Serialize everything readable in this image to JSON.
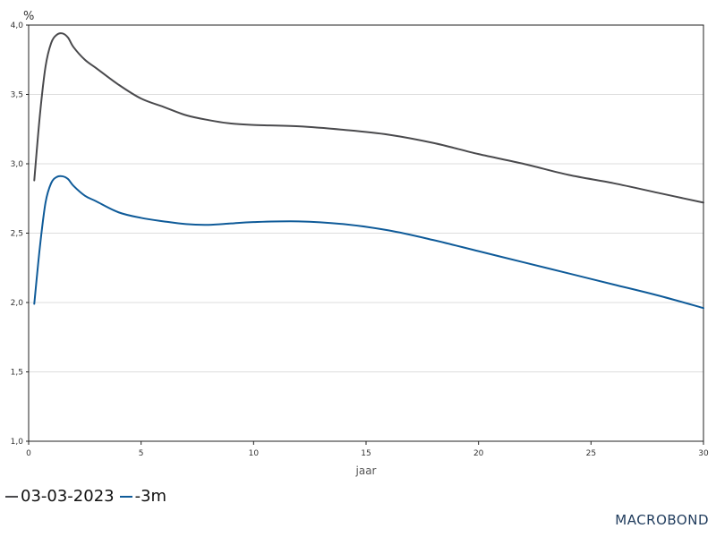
{
  "chart_data": {
    "type": "line",
    "title": "",
    "unit_label": "%",
    "xlabel": "jaar",
    "ylabel": "",
    "xlim": [
      0,
      30
    ],
    "ylim": [
      1.0,
      4.0
    ],
    "x_ticks": [
      0,
      5,
      10,
      15,
      20,
      25,
      30
    ],
    "x_tick_labels": [
      "0",
      "5",
      "10",
      "15",
      "20",
      "25",
      "30"
    ],
    "y_ticks": [
      1.0,
      1.5,
      2.0,
      2.5,
      3.0,
      3.5,
      4.0
    ],
    "y_tick_labels": [
      "1,0",
      "1,5",
      "2,0",
      "2,5",
      "3,0",
      "3,5",
      "4,0"
    ],
    "grid": "horizontal",
    "legend_position": "bottom-left",
    "series": [
      {
        "name": "03-03-2023",
        "color": "#4a4a4d",
        "points": [
          [
            0.25,
            2.88
          ],
          [
            0.5,
            3.35
          ],
          [
            0.75,
            3.7
          ],
          [
            1.0,
            3.87
          ],
          [
            1.25,
            3.93
          ],
          [
            1.5,
            3.94
          ],
          [
            1.75,
            3.91
          ],
          [
            2.0,
            3.84
          ],
          [
            2.5,
            3.75
          ],
          [
            3.0,
            3.69
          ],
          [
            4.0,
            3.57
          ],
          [
            5.0,
            3.47
          ],
          [
            6.0,
            3.41
          ],
          [
            7.0,
            3.35
          ],
          [
            8.0,
            3.315
          ],
          [
            9.0,
            3.29
          ],
          [
            10.0,
            3.28
          ],
          [
            12.0,
            3.27
          ],
          [
            14.0,
            3.245
          ],
          [
            16.0,
            3.21
          ],
          [
            18.0,
            3.15
          ],
          [
            20.0,
            3.07
          ],
          [
            22.0,
            3.0
          ],
          [
            24.0,
            2.92
          ],
          [
            26.0,
            2.86
          ],
          [
            28.0,
            2.79
          ],
          [
            30.0,
            2.72
          ]
        ]
      },
      {
        "name": "-3m",
        "color": "#0f5b99",
        "points": [
          [
            0.25,
            1.99
          ],
          [
            0.5,
            2.4
          ],
          [
            0.75,
            2.72
          ],
          [
            1.0,
            2.86
          ],
          [
            1.25,
            2.905
          ],
          [
            1.5,
            2.91
          ],
          [
            1.75,
            2.89
          ],
          [
            2.0,
            2.84
          ],
          [
            2.5,
            2.77
          ],
          [
            3.0,
            2.73
          ],
          [
            4.0,
            2.65
          ],
          [
            5.0,
            2.61
          ],
          [
            6.0,
            2.585
          ],
          [
            7.0,
            2.565
          ],
          [
            8.0,
            2.56
          ],
          [
            9.0,
            2.57
          ],
          [
            10.0,
            2.58
          ],
          [
            12.0,
            2.585
          ],
          [
            14.0,
            2.565
          ],
          [
            16.0,
            2.52
          ],
          [
            18.0,
            2.45
          ],
          [
            20.0,
            2.37
          ],
          [
            22.0,
            2.29
          ],
          [
            24.0,
            2.21
          ],
          [
            26.0,
            2.13
          ],
          [
            28.0,
            2.05
          ],
          [
            30.0,
            1.96
          ]
        ]
      }
    ]
  },
  "branding": {
    "logo_text": "MACROBOND"
  }
}
